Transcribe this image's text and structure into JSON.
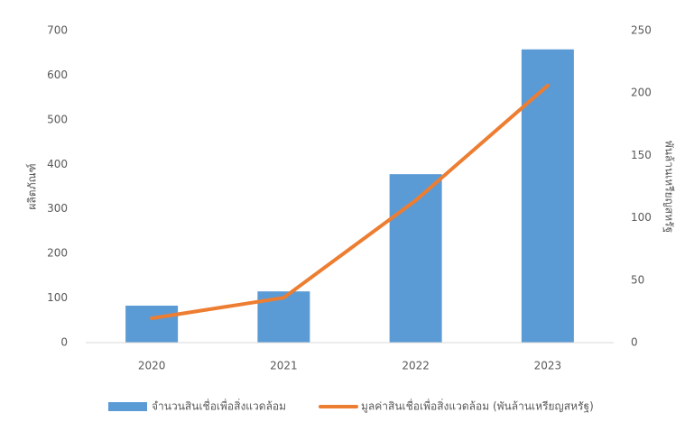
{
  "chart_data": {
    "type": "bar",
    "categories": [
      "2020",
      "2021",
      "2022",
      "2023"
    ],
    "ylabel": "ผลิตภัณฑ์",
    "y2label": "พันล้านเหรียญสหรัฐ",
    "ylim": [
      0,
      700
    ],
    "yticks": [
      0,
      100,
      200,
      300,
      400,
      500,
      600,
      700
    ],
    "y2lim": [
      0,
      250
    ],
    "y2ticks": [
      0,
      50,
      100,
      150,
      200,
      250
    ],
    "grid": false,
    "legend": "bottom",
    "series": [
      {
        "name": "จำนวนสินเชื่อเพื่อสิ่งแวดล้อม",
        "type": "bar",
        "color": "#5b9bd5",
        "values": [
          83,
          115,
          378,
          658
        ]
      },
      {
        "name": "มูลค่าสินเชื่อเพื่อสิ่งแวดล้อม (พันล้านเหรียญสหรัฐ)",
        "type": "line",
        "axis": "y2",
        "color": "#ed7d31",
        "values": [
          19.5,
          36,
          114,
          206
        ]
      }
    ]
  }
}
